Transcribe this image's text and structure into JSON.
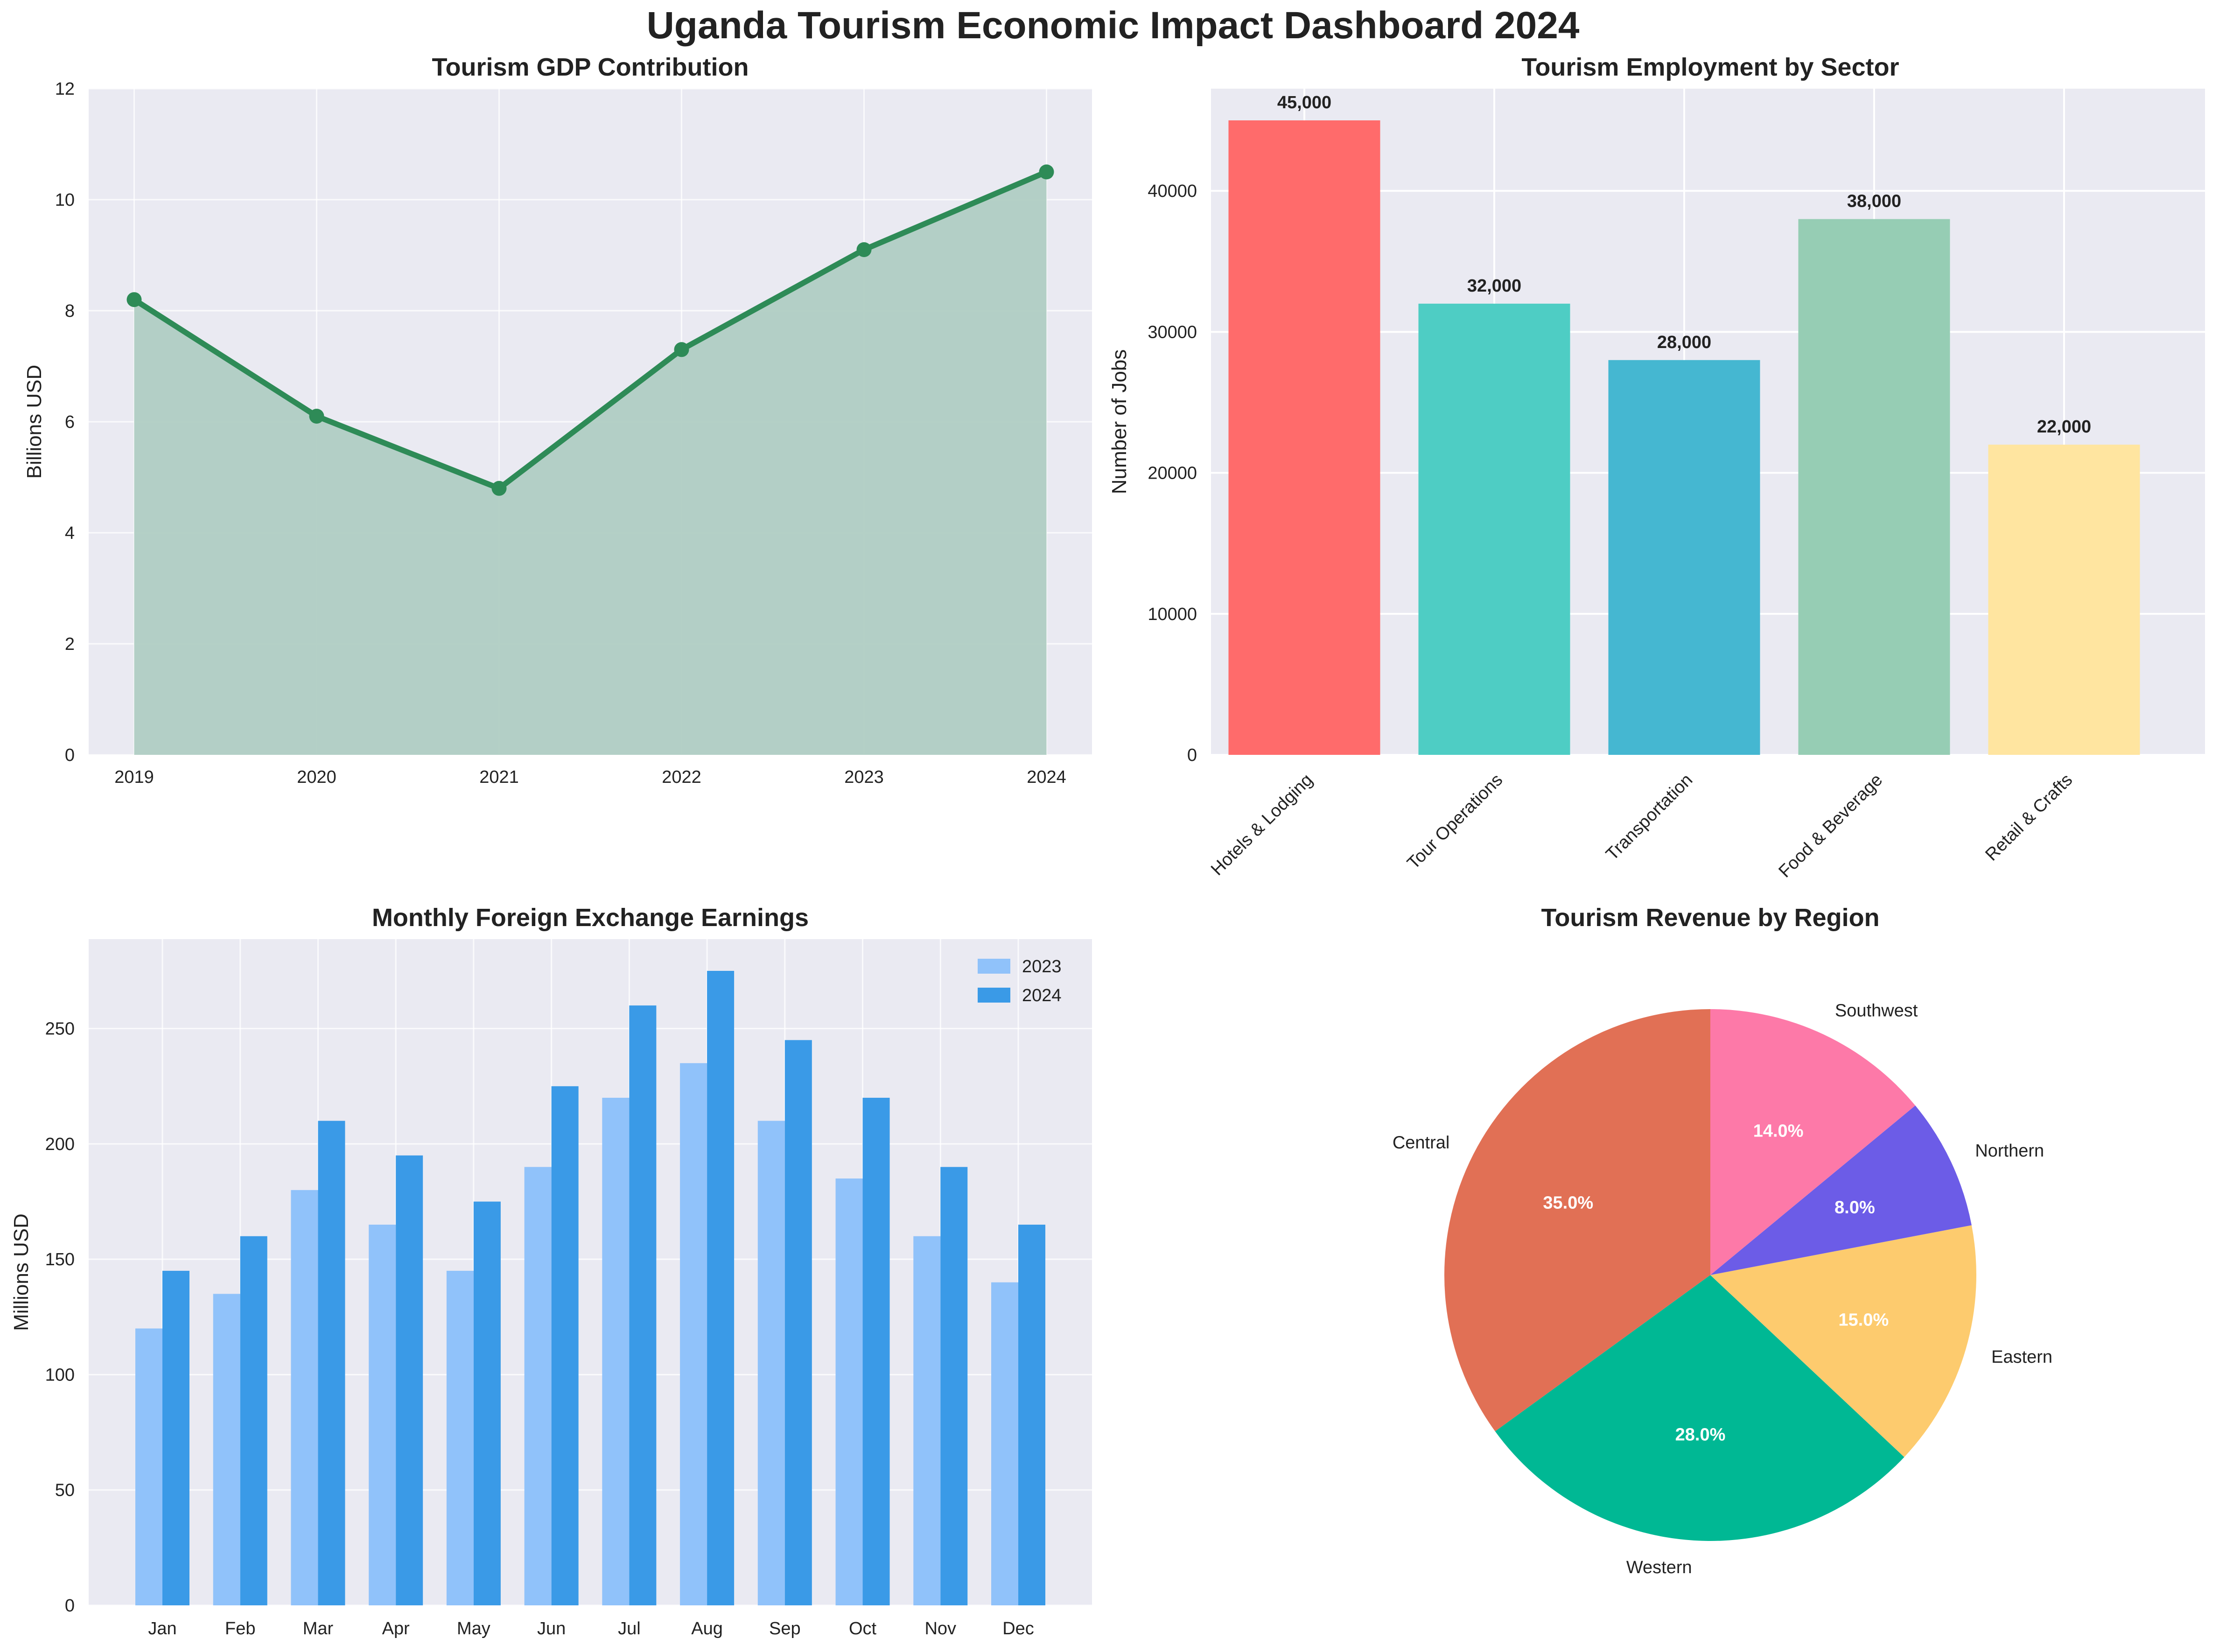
{
  "dashboard_title": "Uganda Tourism Economic Impact Dashboard 2024",
  "colors": {
    "plot_bg": "#eaeaf2",
    "grid": "#ffffff",
    "gdp_line": "#2e8b57",
    "gdp_fill": "#b0cdc3",
    "fx_2023": "#90c2fa",
    "fx_2024": "#3a9ae7"
  },
  "chart_data": [
    {
      "id": "gdp",
      "type": "area",
      "title": "Tourism GDP Contribution",
      "xlabel": "",
      "ylabel": "Billions USD",
      "x": [
        "2019",
        "2020",
        "2021",
        "2022",
        "2023",
        "2024"
      ],
      "values": [
        8.2,
        6.1,
        4.8,
        7.3,
        9.1,
        10.5
      ],
      "ylim": [
        0,
        12
      ],
      "yticks": [
        "0",
        "2",
        "4",
        "6",
        "8",
        "10",
        "12"
      ],
      "grid": true
    },
    {
      "id": "employment",
      "type": "bar",
      "title": "Tourism Employment by Sector",
      "xlabel": "",
      "ylabel": "Number of Jobs",
      "categories": [
        "Hotels & Lodging",
        "Tour Operations",
        "Transportation",
        "Food & Beverage",
        "Retail & Crafts"
      ],
      "values": [
        45000,
        32000,
        28000,
        38000,
        22000
      ],
      "value_labels": [
        "45,000",
        "32,000",
        "28,000",
        "38,000",
        "22,000"
      ],
      "colors": [
        "#ff6b6b",
        "#4ecdc4",
        "#45b7d1",
        "#96cdb4",
        "#ffe5a0"
      ],
      "ylim": [
        0,
        47250
      ],
      "yticks": [
        "0",
        "10000",
        "20000",
        "30000",
        "40000"
      ],
      "grid": true
    },
    {
      "id": "fx",
      "type": "bar",
      "title": "Monthly Foreign Exchange Earnings",
      "xlabel": "",
      "ylabel": "Millions USD",
      "categories": [
        "Jan",
        "Feb",
        "Mar",
        "Apr",
        "May",
        "Jun",
        "Jul",
        "Aug",
        "Sep",
        "Oct",
        "Nov",
        "Dec"
      ],
      "series": [
        {
          "name": "2023",
          "values": [
            120,
            135,
            180,
            165,
            145,
            190,
            220,
            235,
            210,
            185,
            160,
            140
          ]
        },
        {
          "name": "2024",
          "values": [
            145,
            160,
            210,
            195,
            175,
            225,
            260,
            275,
            245,
            220,
            190,
            165
          ]
        }
      ],
      "ylim": [
        0,
        288.75
      ],
      "yticks": [
        "0",
        "50",
        "100",
        "150",
        "200",
        "250"
      ],
      "legend": "top-right",
      "grid": true
    },
    {
      "id": "region",
      "type": "pie",
      "title": "Tourism Revenue by Region",
      "labels": [
        "Central",
        "Western",
        "Eastern",
        "Northern",
        "Southwest"
      ],
      "values": [
        35.0,
        28.0,
        15.0,
        8.0,
        14.0
      ],
      "pct_labels": [
        "35.0%",
        "28.0%",
        "15.0%",
        "8.0%",
        "14.0%"
      ],
      "colors": [
        "#e17055",
        "#00b894",
        "#fdcb6e",
        "#6c5ce7",
        "#fd79a8"
      ]
    }
  ]
}
